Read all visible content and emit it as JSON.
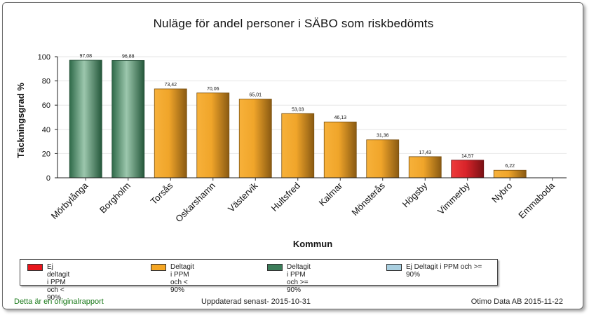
{
  "chart_data": {
    "type": "bar",
    "title": "Nuläge för andel personer i SÄBO som riskbedömts",
    "xlabel": "Kommun",
    "ylabel": "Täckningsgrad %",
    "ylim": [
      0,
      100
    ],
    "yticks": [
      0,
      20,
      40,
      60,
      80,
      100
    ],
    "grid": true,
    "categories": [
      "Mörbylånga",
      "Borgholm",
      "Torsås",
      "Oskarshamn",
      "Västervik",
      "Hultsfred",
      "Kalmar",
      "Mönsterås",
      "Högsby",
      "Vimmerby",
      "Nybro",
      "Emmaboda"
    ],
    "values": [
      97.08,
      96.88,
      73.42,
      70.06,
      65.01,
      53.03,
      46.13,
      31.36,
      17.43,
      14.57,
      6.22,
      0
    ],
    "value_labels": [
      "97,08",
      "96,88",
      "73,42",
      "70,06",
      "65,01",
      "53,03",
      "46,13",
      "31,36",
      "17,43",
      "14,57",
      "6,22",
      ""
    ],
    "bar_groups": [
      "green",
      "green",
      "orange",
      "orange",
      "orange",
      "orange",
      "orange",
      "orange",
      "orange",
      "red",
      "orange",
      "none"
    ]
  },
  "legend": {
    "items": [
      {
        "label": "Ej deltagit i PPM och < 90%",
        "color": "#e8161c"
      },
      {
        "label": "Deltagit i PPM och < 90%",
        "color": "#f5a623"
      },
      {
        "label": "Deltagit i PPM och >= 90%",
        "color": "#3c7d5a"
      },
      {
        "label": "Ej Deltagit i PPM och >= 90%",
        "color": "#a9cfe0"
      }
    ]
  },
  "colors": {
    "green": "#3c7d5a",
    "orange": "#e59a1a",
    "red": "#d61a20"
  },
  "footer": {
    "left": "Detta är en originalrapport",
    "center": "Uppdaterad senast- 2015-10-31",
    "right": "Otimo Data AB 2015-11-22"
  }
}
